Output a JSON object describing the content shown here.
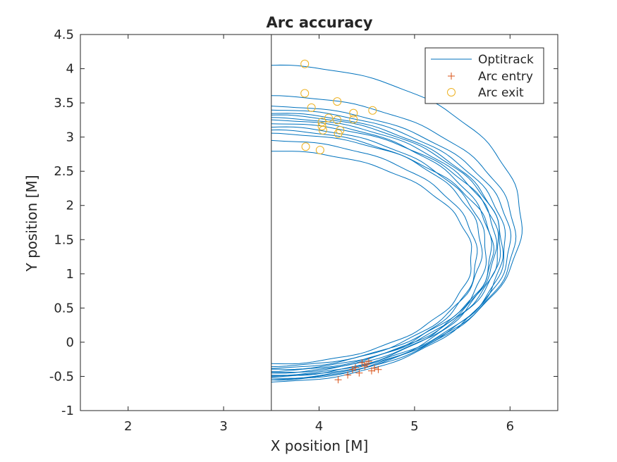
{
  "chart_data": {
    "type": "line",
    "title": "Arc accuracy",
    "xlabel": "X position [M]",
    "ylabel": "Y position [M]",
    "xlim": [
      1.5,
      6.5
    ],
    "ylim": [
      -1,
      4.5
    ],
    "xticks": [
      2,
      3,
      4,
      5,
      6
    ],
    "yticks": [
      -1,
      -0.5,
      0,
      0.5,
      1,
      1.5,
      2,
      2.5,
      3,
      3.5,
      4,
      4.5
    ],
    "xtick_labels": [
      "2",
      "3",
      "4",
      "5",
      "6"
    ],
    "ytick_labels": [
      "-1",
      "-0.5",
      "0",
      "0.5",
      "1",
      "1.5",
      "2",
      "2.5",
      "3",
      "3.5",
      "4",
      "4.5"
    ],
    "grid": false,
    "legend_position": "top-right",
    "occluding_box": {
      "x": [
        1.5,
        3.5
      ],
      "y": [
        -1,
        4.5
      ]
    },
    "series": [
      {
        "name": "Optitrack",
        "kind": "line",
        "color": "#0072BD",
        "arcs": [
          {
            "top": 4.05,
            "bottom": -0.55,
            "x0": 3.5,
            "xmax": 6.12
          },
          {
            "top": 3.6,
            "bottom": -0.5,
            "x0": 3.5,
            "xmax": 6.05
          },
          {
            "top": 3.45,
            "bottom": -0.48,
            "x0": 3.5,
            "xmax": 6.0
          },
          {
            "top": 3.4,
            "bottom": -0.53,
            "x0": 3.5,
            "xmax": 5.95
          },
          {
            "top": 3.35,
            "bottom": -0.45,
            "x0": 3.5,
            "xmax": 5.9
          },
          {
            "top": 3.32,
            "bottom": -0.58,
            "x0": 3.5,
            "xmax": 5.92
          },
          {
            "top": 3.28,
            "bottom": -0.42,
            "x0": 3.5,
            "xmax": 5.85
          },
          {
            "top": 3.25,
            "bottom": -0.55,
            "x0": 3.5,
            "xmax": 5.8
          },
          {
            "top": 3.2,
            "bottom": -0.4,
            "x0": 3.5,
            "xmax": 5.88
          },
          {
            "top": 3.15,
            "bottom": -0.5,
            "x0": 3.5,
            "xmax": 5.75
          },
          {
            "top": 3.1,
            "bottom": -0.38,
            "x0": 3.5,
            "xmax": 5.7
          },
          {
            "top": 3.05,
            "bottom": -0.35,
            "x0": 3.5,
            "xmax": 5.82
          },
          {
            "top": 2.95,
            "bottom": -0.45,
            "x0": 3.5,
            "xmax": 5.65
          },
          {
            "top": 2.8,
            "bottom": -0.32,
            "x0": 3.5,
            "xmax": 5.6
          }
        ]
      },
      {
        "name": "Arc entry",
        "kind": "marker",
        "marker": "plus",
        "color": "#D95319",
        "points": [
          [
            4.2,
            -0.55
          ],
          [
            4.3,
            -0.48
          ],
          [
            4.35,
            -0.4
          ],
          [
            4.38,
            -0.37
          ],
          [
            4.42,
            -0.45
          ],
          [
            4.45,
            -0.3
          ],
          [
            4.48,
            -0.35
          ],
          [
            4.5,
            -0.32
          ],
          [
            4.52,
            -0.28
          ],
          [
            4.55,
            -0.42
          ],
          [
            4.58,
            -0.38
          ],
          [
            4.62,
            -0.4
          ]
        ]
      },
      {
        "name": "Arc exit",
        "kind": "marker",
        "marker": "circle",
        "color": "#EDB120",
        "points": [
          [
            3.85,
            4.07
          ],
          [
            3.85,
            3.64
          ],
          [
            3.92,
            3.43
          ],
          [
            4.19,
            3.52
          ],
          [
            4.56,
            3.39
          ],
          [
            4.36,
            3.35
          ],
          [
            4.36,
            3.26
          ],
          [
            4.1,
            3.28
          ],
          [
            4.03,
            3.22
          ],
          [
            4.03,
            3.16
          ],
          [
            4.19,
            3.25
          ],
          [
            4.04,
            3.1
          ],
          [
            4.2,
            3.05
          ],
          [
            4.22,
            3.1
          ],
          [
            3.86,
            2.86
          ],
          [
            4.01,
            2.81
          ]
        ]
      }
    ]
  }
}
